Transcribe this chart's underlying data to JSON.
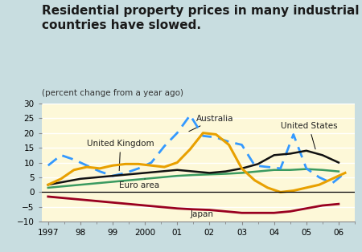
{
  "title": "Residential property prices in many industrial\ncountries have slowed.",
  "subtitle": "(percent change from a year ago)",
  "bg_outer": "#c8dde0",
  "bg_inner": "#fdf8d8",
  "ylim": [
    -10,
    30
  ],
  "yticks": [
    -10,
    -5,
    0,
    5,
    10,
    15,
    20,
    25,
    30
  ],
  "x_tick_positions": [
    1997,
    1998,
    1999,
    2000,
    2001,
    2002,
    2003,
    2004,
    2005,
    2006
  ],
  "x_tick_labels": [
    "1997",
    "98",
    "99",
    "2000",
    "01",
    "02",
    "03",
    "04",
    "05",
    "06"
  ],
  "xlim": [
    1996.8,
    2006.5
  ],
  "uk_x": [
    1997.0,
    1997.4,
    1997.8,
    1998.2,
    1998.6,
    1999.0,
    1999.4,
    1999.8,
    2000.2,
    2000.6,
    2001.0,
    2001.4,
    2001.8,
    2002.2,
    2002.6,
    2003.0,
    2003.4,
    2003.8,
    2004.2,
    2004.6,
    2005.0,
    2005.4,
    2005.8,
    2006.2
  ],
  "uk_y": [
    9.0,
    12.5,
    11.0,
    9.0,
    7.0,
    5.5,
    6.5,
    8.0,
    10.0,
    15.5,
    20.0,
    26.0,
    19.0,
    18.5,
    17.0,
    16.0,
    9.0,
    8.5,
    8.0,
    19.5,
    8.0,
    5.0,
    3.0,
    6.5
  ],
  "au_x": [
    1997.0,
    1997.4,
    1997.8,
    1998.2,
    1998.6,
    1999.0,
    1999.4,
    1999.8,
    2000.2,
    2000.6,
    2001.0,
    2001.4,
    2001.8,
    2002.2,
    2002.6,
    2003.0,
    2003.4,
    2003.8,
    2004.2,
    2004.6,
    2005.0,
    2005.4,
    2005.8,
    2006.2
  ],
  "au_y": [
    2.5,
    4.5,
    7.5,
    8.5,
    8.0,
    9.0,
    9.5,
    9.5,
    9.0,
    8.5,
    10.0,
    14.5,
    20.0,
    19.5,
    16.0,
    8.0,
    4.0,
    1.5,
    0.0,
    0.5,
    1.5,
    2.5,
    4.5,
    6.5
  ],
  "us_x": [
    1997.0,
    1997.5,
    1998.0,
    1998.5,
    1999.0,
    1999.5,
    2000.0,
    2000.5,
    2001.0,
    2001.5,
    2002.0,
    2002.5,
    2003.0,
    2003.5,
    2004.0,
    2004.5,
    2005.0,
    2005.5,
    2006.0
  ],
  "us_y": [
    2.5,
    3.5,
    4.5,
    5.0,
    5.5,
    6.0,
    6.5,
    7.0,
    7.5,
    7.0,
    6.5,
    7.0,
    8.0,
    9.5,
    12.5,
    13.0,
    14.0,
    12.5,
    10.0
  ],
  "eu_x": [
    1997.0,
    1997.5,
    1998.0,
    1998.5,
    1999.0,
    1999.5,
    2000.0,
    2000.5,
    2001.0,
    2001.5,
    2002.0,
    2002.5,
    2003.0,
    2003.5,
    2004.0,
    2004.5,
    2005.0,
    2005.5,
    2006.0
  ],
  "eu_y": [
    1.5,
    2.0,
    2.5,
    3.0,
    3.5,
    4.0,
    4.5,
    5.0,
    5.5,
    5.8,
    6.0,
    6.2,
    6.5,
    7.0,
    7.5,
    7.5,
    7.8,
    7.5,
    7.0
  ],
  "jp_x": [
    1997.0,
    1997.5,
    1998.0,
    1998.5,
    1999.0,
    1999.5,
    2000.0,
    2000.5,
    2001.0,
    2001.5,
    2002.0,
    2002.5,
    2003.0,
    2003.5,
    2004.0,
    2004.5,
    2005.0,
    2005.5,
    2006.0
  ],
  "jp_y": [
    -1.5,
    -2.0,
    -2.5,
    -3.0,
    -3.5,
    -4.0,
    -4.5,
    -5.0,
    -5.5,
    -5.8,
    -6.0,
    -6.5,
    -7.0,
    -7.0,
    -7.0,
    -6.5,
    -5.5,
    -4.5,
    -4.0
  ],
  "uk_color": "#3399ff",
  "au_color": "#e8a000",
  "us_color": "#111111",
  "eu_color": "#3a9a60",
  "jp_color": "#990020",
  "title_fontsize": 11,
  "subtitle_fontsize": 7.5,
  "tick_fontsize": 7.5,
  "annot_fontsize": 7.5
}
